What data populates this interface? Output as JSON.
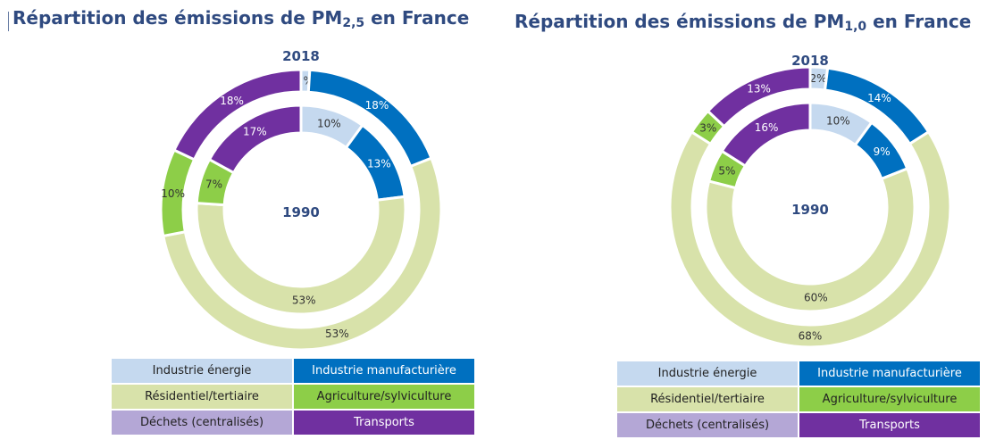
{
  "chart_data": [
    {
      "type": "donut",
      "title": "Répartition des émissions de PM",
      "title_sub": "2,5",
      "title_suffix": " en France",
      "outer_ring_label": "2018",
      "inner_ring_label": "1990",
      "categories": [
        "Industrie énergie",
        "Industrie manufacturière",
        "Résidentiel/tertiaire",
        "Agriculture/sylviculture",
        "Déchets (centralisés)",
        "Transports"
      ],
      "series": [
        {
          "name": "2018",
          "ring": "outer",
          "values": [
            1,
            18,
            53,
            10,
            0,
            18
          ],
          "labels": [
            "1%",
            "18%",
            "53%",
            "10%",
            "",
            "18%"
          ]
        },
        {
          "name": "1990",
          "ring": "inner",
          "values": [
            10,
            13,
            53,
            7,
            0,
            17
          ],
          "labels": [
            "10%",
            "13%",
            "53%",
            "7%",
            "",
            "17%"
          ]
        }
      ],
      "colors": [
        "#c5d9ef",
        "#0070c0",
        "#d8e2aa",
        "#8dce48",
        "#b4a7d6",
        "#7030a0"
      ]
    },
    {
      "type": "donut",
      "title": "Répartition des émissions de PM",
      "title_sub": "1,0",
      "title_suffix": " en France",
      "outer_ring_label": "2018",
      "inner_ring_label": "1990",
      "categories": [
        "Industrie énergie",
        "Industrie manufacturière",
        "Résidentiel/tertiaire",
        "Agriculture/sylviculture",
        "Déchets (centralisés)",
        "Transports"
      ],
      "series": [
        {
          "name": "2018",
          "ring": "outer",
          "values": [
            2,
            14,
            68,
            3,
            0,
            13
          ],
          "labels": [
            "2%",
            "14%",
            "68%",
            "3%",
            "",
            "13%"
          ]
        },
        {
          "name": "1990",
          "ring": "inner",
          "values": [
            10,
            9,
            60,
            5,
            0,
            16
          ],
          "labels": [
            "10%",
            "9%",
            "60%",
            "5%",
            "",
            "16%"
          ]
        }
      ],
      "colors": [
        "#c5d9ef",
        "#0070c0",
        "#d8e2aa",
        "#8dce48",
        "#b4a7d6",
        "#7030a0"
      ]
    }
  ],
  "legend": [
    {
      "label": "Industrie énergie",
      "color": "#c5d9ef",
      "text_color": "#222222"
    },
    {
      "label": "Industrie manufacturière",
      "color": "#0070c0",
      "text_color": "#ffffff"
    },
    {
      "label": "Résidentiel/tertiaire",
      "color": "#d8e2aa",
      "text_color": "#222222"
    },
    {
      "label": "Agriculture/sylviculture",
      "color": "#8dce48",
      "text_color": "#222222"
    },
    {
      "label": "Déchets (centralisés)",
      "color": "#b4a7d6",
      "text_color": "#222222"
    },
    {
      "label": "Transports",
      "color": "#7030a0",
      "text_color": "#ffffff"
    }
  ]
}
